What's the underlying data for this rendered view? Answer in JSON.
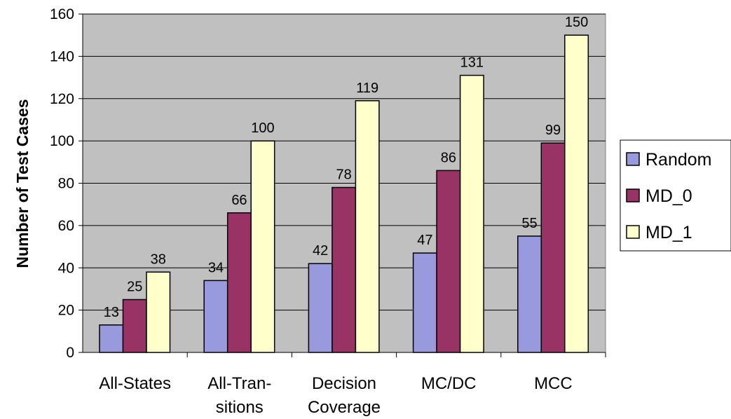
{
  "chart_data": {
    "type": "bar",
    "ylabel": "Number of Test Cases",
    "xlabel": "",
    "ylim": [
      0,
      160
    ],
    "yticks": [
      0,
      20,
      40,
      60,
      80,
      100,
      120,
      140,
      160
    ],
    "grid": true,
    "legend": "right",
    "plot_background": "#c0c0c0",
    "categories": [
      [
        "All-States"
      ],
      [
        "All-Tran-",
        "sitions"
      ],
      [
        "Decision",
        "Coverage"
      ],
      [
        "MC/DC"
      ],
      [
        "MCC"
      ]
    ],
    "series": [
      {
        "name": "Random",
        "color": "#9999dd",
        "values": [
          13,
          34,
          42,
          47,
          55
        ]
      },
      {
        "name": "MD_0",
        "color": "#993366",
        "values": [
          25,
          66,
          78,
          86,
          99
        ]
      },
      {
        "name": "MD_1",
        "color": "#ffffcc",
        "values": [
          38,
          100,
          119,
          131,
          150
        ]
      }
    ]
  }
}
